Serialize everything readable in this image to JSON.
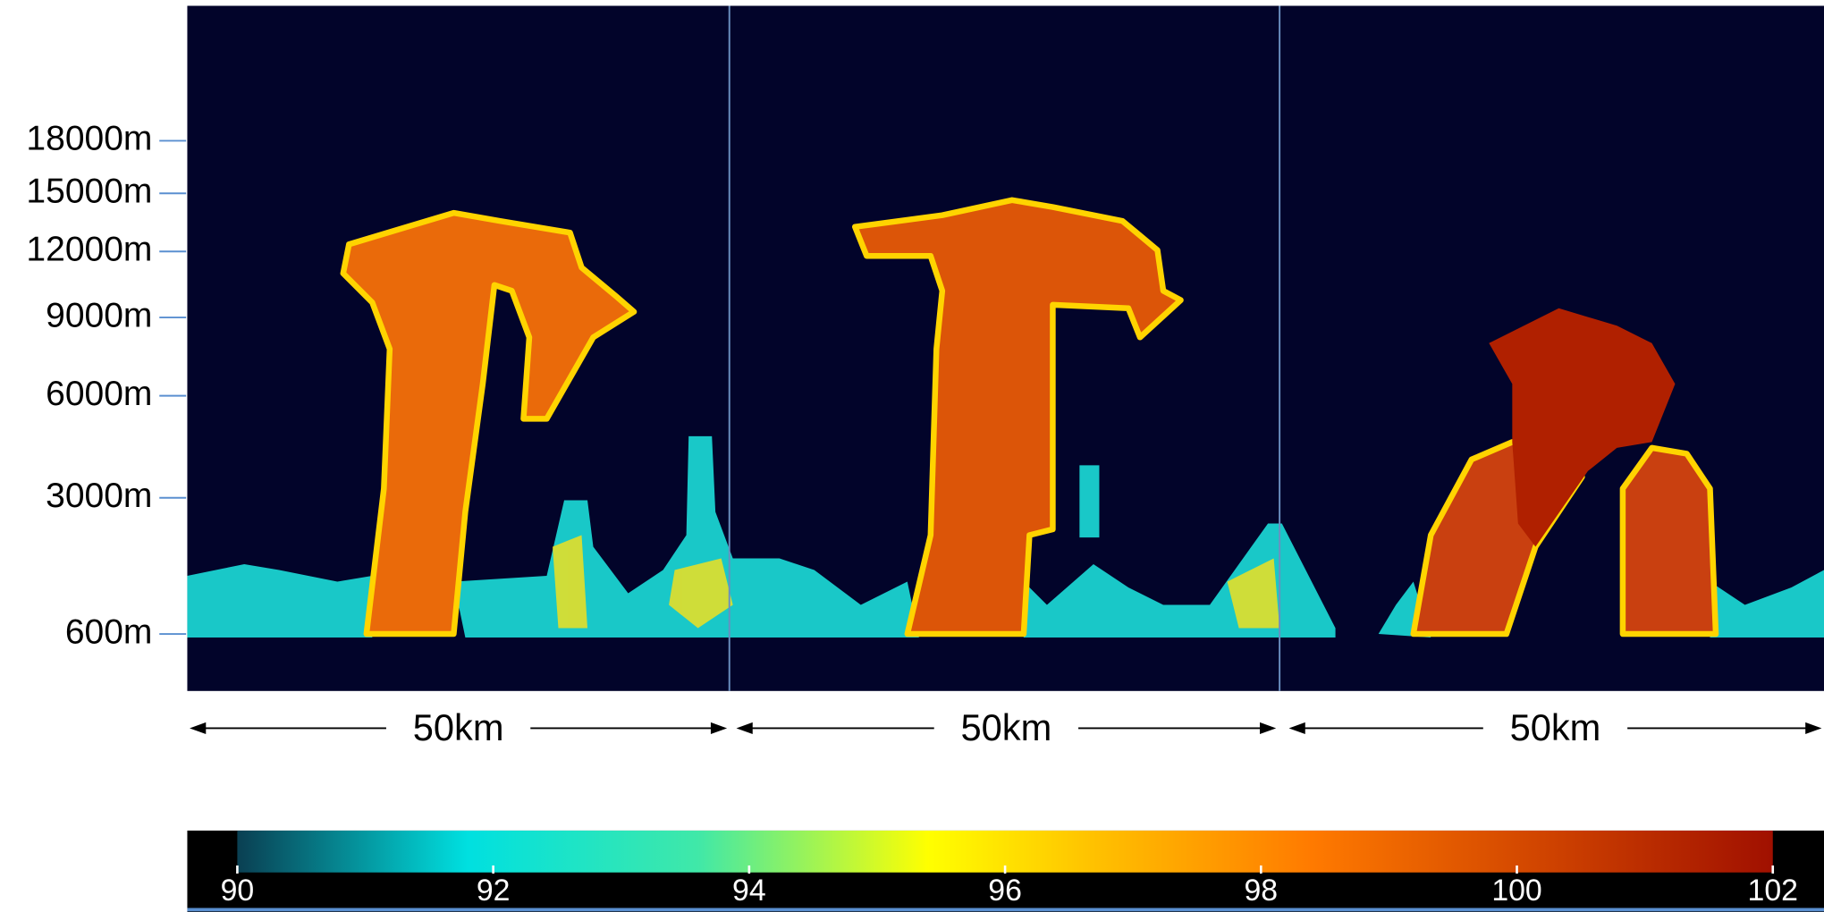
{
  "altitude_axis": {
    "scale": "sqrt",
    "ticks": [
      {
        "value": 18000,
        "label": "18000m"
      },
      {
        "value": 15000,
        "label": "15000m"
      },
      {
        "value": 12000,
        "label": "12000m"
      },
      {
        "value": 9000,
        "label": "9000m"
      },
      {
        "value": 6000,
        "label": "6000m"
      },
      {
        "value": 3000,
        "label": "3000m"
      },
      {
        "value": 600,
        "label": "600m"
      }
    ]
  },
  "panels": [
    {
      "label": "50km"
    },
    {
      "label": "50km"
    },
    {
      "label": "50km"
    }
  ],
  "colorbar": {
    "lim": [
      90,
      102
    ],
    "ticks": [
      90,
      92,
      94,
      96,
      98,
      100,
      102
    ]
  }
}
